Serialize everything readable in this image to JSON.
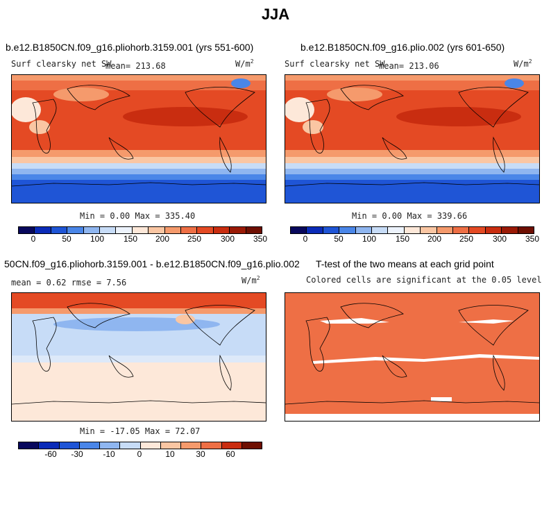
{
  "title": "JJA",
  "panels": [
    {
      "title": "b.e12.B1850CN.f09_g16.pliohorb.3159.001 (yrs 551-600)",
      "variable": "Surf clearsky net SW",
      "mean": "mean= 213.68",
      "units": "W/m",
      "units_exp": "2",
      "minmax": "Min =   0.00 Max = 335.40"
    },
    {
      "title": "b.e12.B1850CN.f09_g16.plio.002 (yrs 601-650)",
      "variable": "Surf clearsky net SW",
      "mean": "mean= 213.06",
      "units": "W/m",
      "units_exp": "2",
      "minmax": "Min =   0.00 Max = 339.66"
    },
    {
      "title": "50CN.f09_g16.pliohorb.3159.001 - b.e12.B1850CN.f09_g16.plio.002",
      "stats": "mean =   0.62    rmse =   7.56",
      "units": "W/m",
      "units_exp": "2",
      "minmax": "Min = -17.05 Max =  72.07"
    },
    {
      "title": "T-test of the two means at each grid point",
      "subtitle": "Colored cells are significant at the 0.05 level"
    }
  ],
  "colorbar_abs": {
    "labels": [
      "0",
      "50",
      "100",
      "150",
      "200",
      "250",
      "300",
      "350"
    ],
    "colors": [
      "#08085c",
      "#0a2bb8",
      "#1f55d6",
      "#4a86e8",
      "#8fb6f0",
      "#c7dcf7",
      "#edf3fc",
      "#fde8d9",
      "#fac6a3",
      "#f59a6c",
      "#ee6f45",
      "#e44a24",
      "#c92d10",
      "#9a1a06",
      "#6e0f02"
    ]
  },
  "colorbar_diff": {
    "labels": [
      "-60",
      "-30",
      "-10",
      "0",
      "10",
      "30",
      "60"
    ],
    "colors": [
      "#08085c",
      "#0a2bb8",
      "#1f55d6",
      "#4a86e8",
      "#8fb6f0",
      "#c7dcf7",
      "#fde8d9",
      "#fac6a3",
      "#f59a6c",
      "#ee6f45",
      "#c92d10",
      "#6e0f02"
    ]
  }
}
